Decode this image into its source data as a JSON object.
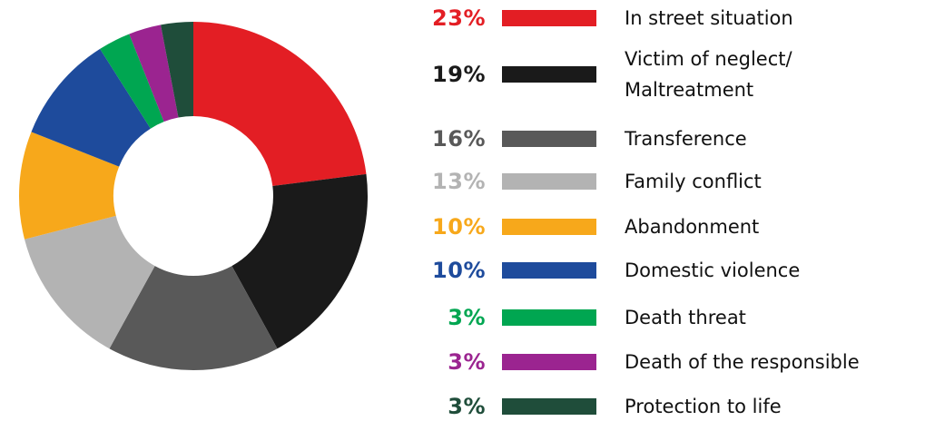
{
  "chart_data": {
    "type": "donut",
    "categories": [
      "In street situation",
      "Victim of neglect/\nMaltreatment",
      "Transference",
      "Family conflict",
      "Abandonment",
      "Domestic violence",
      "Death threat",
      "Death of the responsible",
      "Protection to life"
    ],
    "values": [
      23,
      19,
      16,
      13,
      10,
      10,
      3,
      3,
      3
    ],
    "value_labels": [
      "23%",
      "19%",
      "16%",
      "13%",
      "10%",
      "10%",
      "3%",
      "3%",
      "3%"
    ],
    "colors": [
      "#e31e24",
      "#1a1a1a",
      "#595959",
      "#b3b3b3",
      "#f7a81b",
      "#1e4b9c",
      "#00a651",
      "#9b2490",
      "#1f4d3a"
    ]
  }
}
